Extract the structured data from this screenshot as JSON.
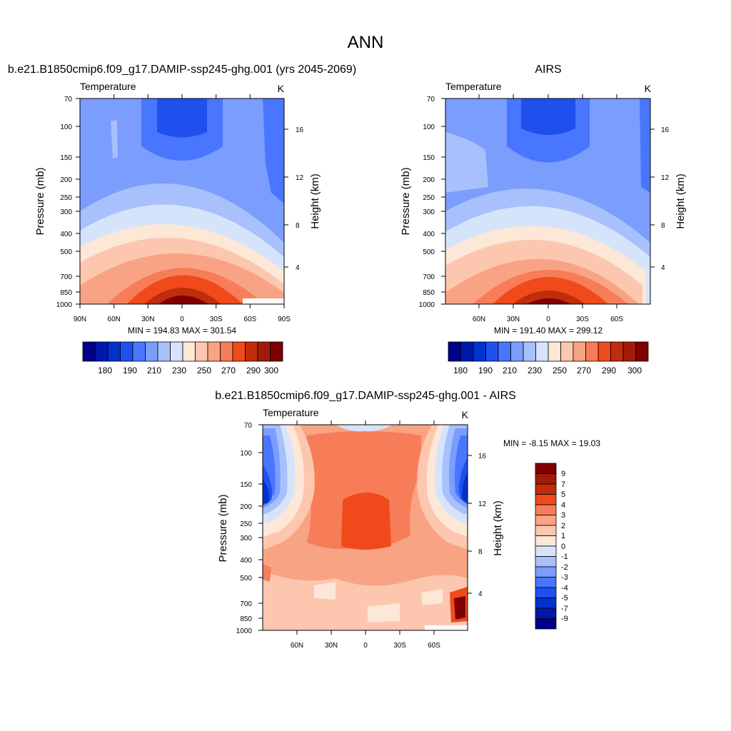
{
  "page": {
    "title": "ANN"
  },
  "chart_data": [
    {
      "type": "heatmap",
      "title": "b.e21.B1850cmip6.f09_g17.DAMIP-ssp245-ghg.001 (yrs 2045-2069)",
      "left_label": "Temperature",
      "right_label": "K",
      "ylabel": "Pressure (mb)",
      "ylabel_right": "Height (km)",
      "x_ticks": [
        "90N",
        "60N",
        "30N",
        "0",
        "30S",
        "60S",
        "90S"
      ],
      "y_ticks": [
        "70",
        "100",
        "150",
        "200",
        "250",
        "300",
        "400",
        "500",
        "700",
        "850",
        "1000"
      ],
      "height_ticks": [
        "16",
        "12",
        "8",
        "4"
      ],
      "stats": "MIN = 194.83  MAX = 301.54",
      "levels": [
        180,
        185,
        190,
        195,
        200,
        210,
        220,
        230,
        240,
        250,
        260,
        270,
        280,
        290,
        300
      ],
      "colorbar_labels": [
        "180",
        "190",
        "210",
        "230",
        "250",
        "270",
        "290",
        "300"
      ],
      "min": 194.83,
      "max": 301.54
    },
    {
      "type": "heatmap",
      "title": "AIRS",
      "left_label": "Temperature",
      "right_label": "K",
      "ylabel": "Pressure (mb)",
      "ylabel_right": "Height (km)",
      "x_ticks": [
        "60N",
        "30N",
        "0",
        "30S",
        "60S"
      ],
      "y_ticks": [
        "70",
        "100",
        "150",
        "200",
        "250",
        "300",
        "400",
        "500",
        "700",
        "850",
        "1000"
      ],
      "height_ticks": [
        "16",
        "12",
        "8",
        "4"
      ],
      "stats": "MIN = 191.40  MAX = 299.12",
      "levels": [
        180,
        185,
        190,
        195,
        200,
        210,
        220,
        230,
        240,
        250,
        260,
        270,
        280,
        290,
        300
      ],
      "colorbar_labels": [
        "180",
        "190",
        "210",
        "230",
        "250",
        "270",
        "290",
        "300"
      ],
      "min": 191.4,
      "max": 299.12
    },
    {
      "type": "heatmap",
      "title": "b.e21.B1850cmip6.f09_g17.DAMIP-ssp245-ghg.001 - AIRS",
      "left_label": "Temperature",
      "right_label": "K",
      "ylabel": "Pressure (mb)",
      "ylabel_right": "Height (km)",
      "x_ticks": [
        "60N",
        "30N",
        "0",
        "30S",
        "60S"
      ],
      "y_ticks": [
        "70",
        "100",
        "150",
        "200",
        "250",
        "300",
        "400",
        "500",
        "700",
        "850",
        "1000"
      ],
      "height_ticks": [
        "16",
        "12",
        "8",
        "4"
      ],
      "stats": "MIN =  -8.15  MAX =  19.03",
      "levels": [
        -9,
        -7,
        -5,
        -4,
        -3,
        -2,
        -1,
        0,
        1,
        2,
        3,
        4,
        5,
        7,
        9
      ],
      "colorbar_labels": [
        "9",
        "7",
        "5",
        "4",
        "3",
        "2",
        "1",
        "0",
        "-1",
        "-2",
        "-3",
        "-4",
        "-5",
        "-7",
        "-9"
      ],
      "min": -8.15,
      "max": 19.03
    }
  ],
  "colors": {
    "palette": [
      "#00008b",
      "#0019aa",
      "#0033cc",
      "#1f50ee",
      "#4876ff",
      "#7b9dfd",
      "#a8c0fb",
      "#d6e4fb",
      "#fde7d7",
      "#fcc7ae",
      "#f9a385",
      "#f77c58",
      "#f04a1c",
      "#c12c0a",
      "#a11b0a",
      "#7f0000"
    ]
  }
}
